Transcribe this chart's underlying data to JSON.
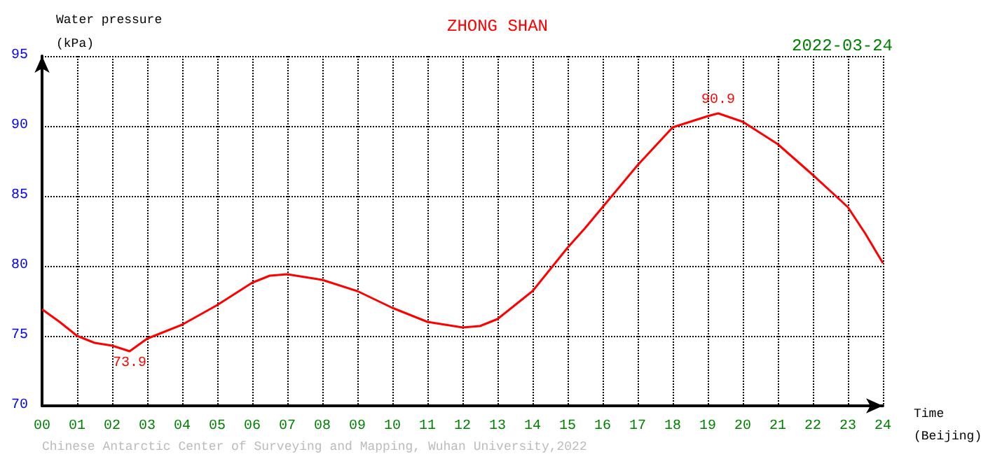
{
  "chart_data": {
    "type": "line",
    "title": "ZHONG SHAN",
    "subtitle": "2022-03-24",
    "xlabel": "Time\n(Beijing)",
    "ylabel": "Water pressure\n(kPa)",
    "x": [
      0,
      0.5,
      1,
      1.5,
      2,
      2.5,
      3,
      3.5,
      4,
      5,
      6,
      6.5,
      7,
      8,
      9,
      10,
      11,
      12,
      12.5,
      13,
      14,
      15,
      15.5,
      16,
      17,
      18,
      19,
      19.3,
      20,
      21,
      22,
      23,
      23.5,
      24
    ],
    "series": [
      {
        "color": "#ff0000",
        "values": [
          76.9,
          76.0,
          75.0,
          74.5,
          74.3,
          73.9,
          74.8,
          75.3,
          75.8,
          77.2,
          78.8,
          79.3,
          79.4,
          79.0,
          78.2,
          77.0,
          76.0,
          75.6,
          75.7,
          76.2,
          78.2,
          81.3,
          82.7,
          84.2,
          87.2,
          89.9,
          90.7,
          90.9,
          90.3,
          88.7,
          86.5,
          84.2,
          82.3,
          80.2
        ]
      }
    ],
    "xlim": [
      0,
      24
    ],
    "xticks": [
      {
        "value": 0,
        "label": "00"
      },
      {
        "value": 1,
        "label": "01"
      },
      {
        "value": 2,
        "label": "02"
      },
      {
        "value": 3,
        "label": "03"
      },
      {
        "value": 4,
        "label": "04"
      },
      {
        "value": 5,
        "label": "05"
      },
      {
        "value": 6,
        "label": "06"
      },
      {
        "value": 7,
        "label": "07"
      },
      {
        "value": 8,
        "label": "08"
      },
      {
        "value": 9,
        "label": "09"
      },
      10,
      11,
      12,
      13,
      14,
      15,
      16,
      17,
      18,
      19,
      20,
      21,
      22,
      23,
      24
    ],
    "ylim": [
      70,
      95
    ],
    "yticks": [
      70,
      75,
      80,
      85,
      90,
      95
    ],
    "annotations": [
      {
        "text": "73.9",
        "x": 2.5,
        "y": 73.9
      },
      {
        "text": "90.9",
        "x": 19.3,
        "y": 90.9
      },
      "Chinese Antarctic Center of Surveying and Mapping, Wuhan University,2022"
    ],
    "grid": true,
    "marker": "none",
    "line_style": "solid"
  }
}
